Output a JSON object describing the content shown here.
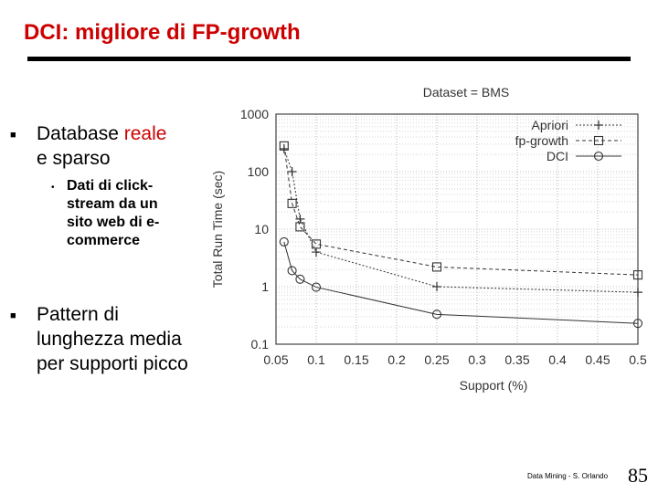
{
  "slide": {
    "title": "DCI: migliore di FP-growth",
    "bullet1": {
      "text_a": "Database ",
      "text_b": "reale",
      "text_c": "e  sparso"
    },
    "sub_bullet": "Dati di click-stream da un sito web di e-commerce",
    "bullet2": {
      "line1": "Pattern di",
      "line2": "lunghezza media",
      "line3": "per supporti picco"
    },
    "footer": "Data Mining - S. Orlando",
    "page_number": "85"
  },
  "chart_data": {
    "type": "line",
    "title": "Dataset = BMS",
    "xlabel": "Support (%)",
    "ylabel": "Total Run Time (sec)",
    "xlim": [
      0.05,
      0.5
    ],
    "ylim": [
      0.1,
      1000
    ],
    "y_scale": "log",
    "grid": true,
    "legend_position": "top-right",
    "x_ticks": [
      "0.05",
      "0.1",
      "0.15",
      "0.2",
      "0.25",
      "0.3",
      "0.35",
      "0.4",
      "0.45",
      "0.5"
    ],
    "y_ticks": [
      "0.1",
      "1",
      "10",
      "100",
      "1000"
    ],
    "series": [
      {
        "name": "Apriori",
        "marker": "plus",
        "dash": "dotted",
        "x": [
          0.06,
          0.07,
          0.08,
          0.1,
          0.25,
          0.5
        ],
        "y": [
          250,
          100,
          15,
          4,
          1,
          0.8
        ]
      },
      {
        "name": "fp-growth",
        "marker": "square",
        "dash": "dashed",
        "x": [
          0.06,
          0.07,
          0.08,
          0.1,
          0.25,
          0.5
        ],
        "y": [
          280,
          28,
          11,
          5.5,
          2.2,
          1.6
        ]
      },
      {
        "name": "DCI",
        "marker": "circle",
        "dash": "solid",
        "x": [
          0.06,
          0.07,
          0.08,
          0.1,
          0.25,
          0.5
        ],
        "y": [
          6,
          1.9,
          1.35,
          0.98,
          0.33,
          0.23
        ]
      }
    ]
  }
}
